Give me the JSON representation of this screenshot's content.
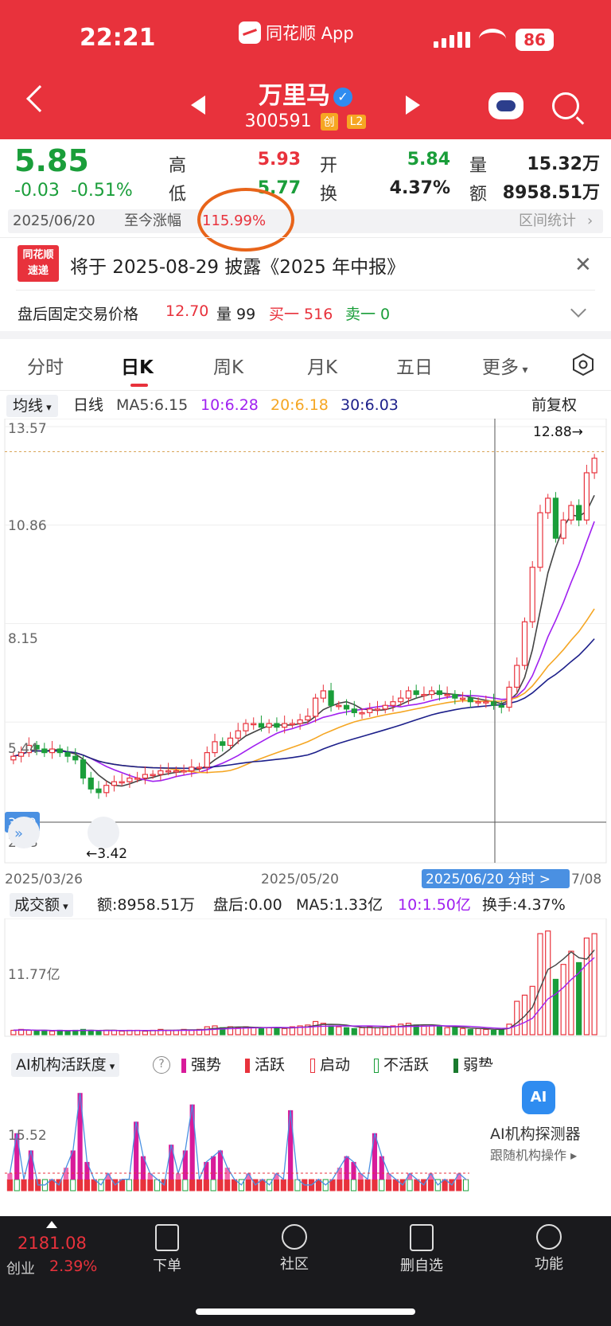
{
  "status_bar": {
    "time": "22:21",
    "app_label": "同花顺 App",
    "battery": "86"
  },
  "header": {
    "name": "万里马",
    "code": "300591",
    "badge_chuang": "创",
    "badge_l2": "L2"
  },
  "quote": {
    "price": "5.85",
    "change": "-0.03",
    "change_pct": "-0.51%",
    "high_label": "高",
    "high": "5.93",
    "low_label": "低",
    "low": "5.77",
    "open_label": "开",
    "open": "5.84",
    "turnover_label": "换",
    "turnover": "4.37%",
    "volume_label": "量",
    "volume": "15.32万",
    "amount_label": "额",
    "amount": "8958.51万"
  },
  "date_strip": {
    "date": "2025/06/20",
    "label": "至今涨幅",
    "value": "115.99%",
    "stats": "区间统计"
  },
  "notice": {
    "logo_top": "同花顺",
    "logo_bottom": "速递",
    "text": "将于 2025-08-29 披露《2025 年中报》"
  },
  "fixed_price": {
    "label": "盘后固定交易价格",
    "price": "12.70",
    "vol_label": "量 99",
    "buy": "买一 516",
    "sell": "卖一 0"
  },
  "tabs": [
    {
      "label": "分时"
    },
    {
      "label": "日K"
    },
    {
      "label": "周K"
    },
    {
      "label": "月K"
    },
    {
      "label": "五日"
    },
    {
      "label": "更多"
    }
  ],
  "ma_row": {
    "dropdown": "均线",
    "period": "日线",
    "ma5": "MA5:6.15",
    "ma10": "10:6.28",
    "ma20": "20:6.18",
    "ma30": "30:6.03",
    "adjust": "前复权"
  },
  "colors": {
    "up": "#e8323c",
    "down": "#1a9e3a",
    "ma5": "#444444",
    "ma10": "#a020f0",
    "ma20": "#f5a623",
    "ma30": "#1c1f8a"
  },
  "chart_data": [
    {
      "type": "candlestick",
      "y_axis_labels": [
        "13.57",
        "10.86",
        "8.15",
        "5.44",
        "2.73"
      ],
      "y_axis_label_current": "3.49",
      "ylim": [
        2.73,
        13.57
      ],
      "x_axis_labels": [
        "2025/03/26",
        "2025/05/20",
        "2025/06/20 分时 >",
        "7/08"
      ],
      "annotations": {
        "max": "12.88→",
        "min": "←3.42"
      },
      "closes": [
        4.5,
        4.6,
        4.8,
        4.7,
        4.6,
        4.7,
        4.6,
        4.5,
        4.4,
        3.9,
        3.6,
        3.5,
        3.7,
        3.8,
        3.8,
        3.9,
        3.9,
        4.0,
        4.0,
        4.1,
        4.1,
        4.1,
        4.1,
        4.2,
        4.2,
        4.6,
        4.9,
        4.8,
        5.0,
        5.2,
        5.4,
        5.4,
        5.3,
        5.4,
        5.3,
        5.4,
        5.4,
        5.5,
        5.6,
        6.1,
        6.3,
        5.9,
        5.9,
        5.8,
        5.7,
        5.7,
        5.8,
        5.8,
        5.9,
        6.0,
        6.1,
        6.3,
        6.2,
        6.2,
        6.3,
        6.2,
        6.2,
        6.1,
        6.1,
        6.0,
        6.0,
        6.0,
        5.9,
        5.85,
        6.4,
        7.0,
        8.2,
        9.7,
        11.2,
        11.6,
        10.5,
        11.0,
        11.4,
        11.0,
        12.3,
        12.7
      ]
    },
    {
      "type": "bar",
      "title": "成交额",
      "amount": "额:8958.51万",
      "after_hours": "盘后:0.00",
      "ma5": "MA5:1.33亿",
      "ma10": "10:1.50亿",
      "turnover": "换手:4.37%",
      "y_axis_labels": [
        "11.77亿"
      ],
      "values": [
        0.5,
        0.6,
        0.5,
        0.4,
        0.5,
        0.4,
        0.5,
        0.4,
        0.5,
        0.6,
        0.5,
        0.4,
        0.5,
        0.5,
        0.4,
        0.5,
        0.5,
        0.4,
        0.5,
        0.6,
        0.5,
        0.5,
        0.6,
        0.5,
        0.6,
        0.9,
        1.0,
        0.8,
        0.9,
        0.8,
        0.9,
        0.8,
        0.7,
        0.8,
        0.8,
        0.7,
        0.9,
        1.0,
        1.1,
        1.5,
        1.3,
        1.0,
        0.9,
        0.8,
        0.7,
        0.8,
        0.9,
        0.8,
        0.9,
        1.0,
        1.2,
        1.3,
        1.1,
        1.0,
        1.0,
        0.9,
        0.8,
        0.8,
        0.7,
        0.6,
        0.7,
        0.6,
        0.5,
        0.6,
        1.2,
        3.8,
        4.5,
        5.5,
        11.5,
        11.8,
        6.3,
        8.0,
        9.5,
        8.2,
        11.0,
        11.5
      ]
    },
    {
      "type": "bar",
      "title": "AI机构活跃度",
      "legend": [
        "强势",
        "活跃",
        "启动",
        "不活跃",
        "弱势"
      ],
      "y_axis_labels": [
        "15.52"
      ],
      "values": [
        3,
        10,
        2,
        7,
        1,
        1,
        2,
        1,
        4,
        7,
        17,
        5,
        2,
        1,
        3,
        1,
        2,
        2,
        12,
        6,
        3,
        2,
        1,
        8,
        3,
        7,
        15,
        2,
        5,
        6,
        7,
        4,
        2,
        1,
        3,
        1,
        2,
        1,
        3,
        2,
        14,
        2,
        1,
        1,
        2,
        1,
        2,
        4,
        6,
        5,
        3,
        2,
        10,
        6,
        3,
        2,
        1,
        3,
        2,
        1,
        3,
        1,
        2,
        1,
        3,
        2
      ]
    }
  ],
  "ai_detector": {
    "icon_text": "AI",
    "title": "AI机构探测器",
    "subtitle": "跟随机构操作 ▸"
  },
  "bottom": {
    "index_value": "2181.08",
    "index_name": "创业",
    "index_pct": "2.39%",
    "nav": [
      {
        "label": "下单"
      },
      {
        "label": "社区"
      },
      {
        "label": "删自选"
      },
      {
        "label": "功能"
      }
    ]
  }
}
